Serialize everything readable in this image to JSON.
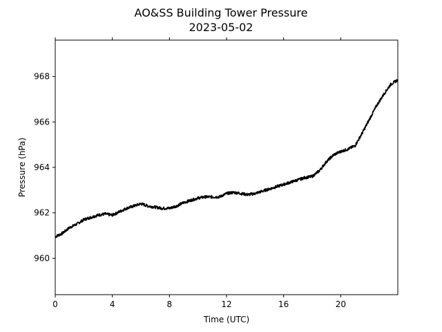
{
  "chart_data": {
    "type": "line",
    "title": "AO&SS Building Tower Pressure",
    "subtitle": "2023-05-02",
    "xlabel": "Time (UTC)",
    "ylabel": "Pressure (hPa)",
    "xlim": [
      0,
      24
    ],
    "ylim": [
      958.4,
      969.6
    ],
    "x_ticks": [
      0,
      4,
      8,
      12,
      16,
      20
    ],
    "x_tick_labels": [
      "0",
      "4",
      "8",
      "12",
      "16",
      "20"
    ],
    "y_ticks": [
      960,
      962,
      964,
      966,
      968
    ],
    "y_tick_labels": [
      "960",
      "962",
      "964",
      "966",
      "968"
    ],
    "grid": false,
    "legend": "none",
    "series_color": "#000000",
    "series": [
      {
        "x": [
          0,
          0.5,
          1,
          1.5,
          2,
          2.5,
          3,
          3.5,
          4,
          4.5,
          5,
          5.5,
          6,
          6.5,
          7,
          7.5,
          8,
          8.5,
          9,
          9.5,
          10,
          10.5,
          11,
          11.5,
          12,
          12.5,
          13,
          13.5,
          14,
          14.5,
          15,
          15.5,
          16,
          16.5,
          17,
          17.5,
          18,
          18.5,
          19,
          19.5,
          20,
          20.5,
          21,
          21.5,
          22,
          22.5,
          23,
          23.5,
          24
        ],
        "values": [
          960.95,
          961.1,
          961.35,
          961.5,
          961.7,
          961.8,
          961.9,
          961.95,
          961.9,
          962.05,
          962.2,
          962.3,
          962.4,
          962.3,
          962.25,
          962.2,
          962.2,
          962.3,
          962.45,
          962.55,
          962.65,
          962.7,
          962.7,
          962.7,
          962.85,
          962.9,
          962.85,
          962.8,
          962.85,
          962.95,
          963.05,
          963.15,
          963.25,
          963.35,
          963.45,
          963.55,
          963.6,
          963.85,
          964.25,
          964.55,
          964.7,
          964.8,
          964.95,
          965.5,
          966.1,
          966.7,
          967.2,
          967.65,
          967.85
        ]
      }
    ]
  }
}
